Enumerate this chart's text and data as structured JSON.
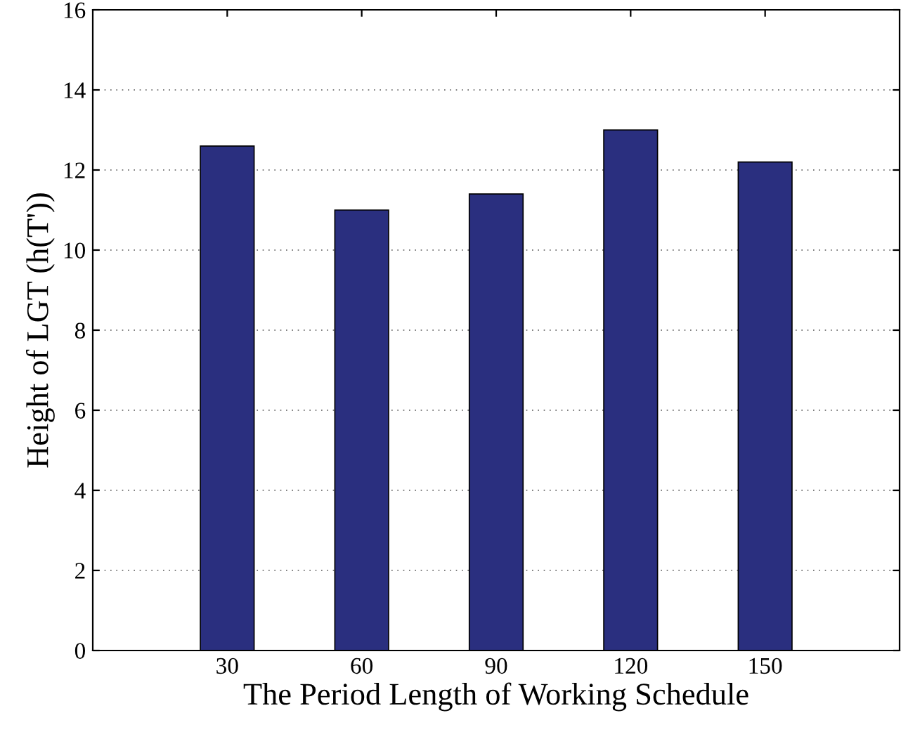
{
  "chart_data": {
    "type": "bar",
    "xlabel": "The Period Length of Working Schedule",
    "ylabel": "Height of LGT (h(T'))",
    "categories": [
      "30",
      "60",
      "90",
      "120",
      "150"
    ],
    "values": [
      12.6,
      11.0,
      11.4,
      13.0,
      12.2
    ],
    "color": "#2a2f7f",
    "ylim": [
      0,
      16
    ],
    "yticks": [
      0,
      2,
      4,
      6,
      8,
      10,
      12,
      14,
      16
    ],
    "grid": "y"
  }
}
